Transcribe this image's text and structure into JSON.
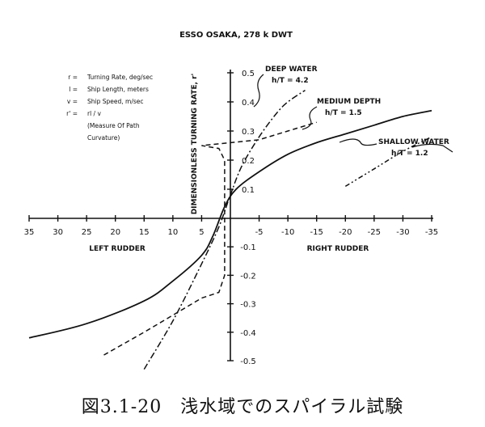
{
  "caption": "図3.1-20　浅水域でのスパイラル試験",
  "chart_data": {
    "type": "line",
    "title": "ESSO OSAKA, 278 k DWT",
    "ylabel": "DIMENSIONLESS TURNING RATE, r'",
    "xlabel_left": "LEFT RUDDER",
    "xlabel_right": "RIGHT RUDDER",
    "x_ticks": [
      35,
      30,
      25,
      20,
      15,
      10,
      5,
      -5,
      -10,
      -15,
      -20,
      -25,
      -30,
      -35
    ],
    "x_tick_labels": [
      "35",
      "30",
      "25",
      "20",
      "15",
      "10",
      "5",
      "-5",
      "-10",
      "-15",
      "-20",
      "-25",
      "-30",
      "-35"
    ],
    "y_ticks": [
      0.5,
      0.4,
      0.3,
      0.2,
      0.1,
      -0.1,
      -0.2,
      -0.3,
      -0.4,
      -0.5
    ],
    "y_tick_labels": [
      "0.5",
      "0.4",
      "0.3",
      "0.2",
      "0.1",
      "-0.1",
      "-0.2",
      "-0.3",
      "-0.4",
      "-0.5"
    ],
    "xlim": [
      35,
      -35
    ],
    "ylim": [
      -0.5,
      0.5
    ],
    "legend": [
      {
        "symbol": "r =",
        "text": "Turning Rate, deg/sec"
      },
      {
        "symbol": "l =",
        "text": "Ship Length, meters"
      },
      {
        "symbol": "v =",
        "text": "Ship Speed, m/sec"
      },
      {
        "symbol": "r' =",
        "text": "rl / v"
      },
      {
        "symbol": "",
        "text": "(Measure Of Path"
      },
      {
        "symbol": "",
        "text": "Curvature)"
      }
    ],
    "series": [
      {
        "name": "DEEP WATER",
        "sublabel": "h/T = 4.2",
        "style": "dashdot",
        "x": [
          15,
          10,
          5,
          2,
          0,
          -2,
          -5,
          -8,
          -10,
          -13
        ],
        "y": [
          -0.53,
          -0.36,
          -0.16,
          -0.03,
          0.08,
          0.18,
          0.28,
          0.36,
          0.4,
          0.44
        ]
      },
      {
        "name": "MEDIUM DEPTH",
        "sublabel": "h/T = 1.5",
        "style": "dashed",
        "x": [
          22,
          15,
          10,
          5,
          2,
          1,
          1,
          2,
          5,
          -5,
          -10,
          -15
        ],
        "y": [
          -0.48,
          -0.4,
          -0.34,
          -0.28,
          -0.26,
          -0.2,
          0.2,
          0.24,
          0.25,
          0.27,
          0.3,
          0.33
        ]
      },
      {
        "name": "SHALLOW WATER",
        "sublabel": "h/T = 1.2",
        "style": "solid",
        "x": [
          35,
          25,
          15,
          10,
          5,
          3,
          1,
          -1,
          -5,
          -10,
          -15,
          -20,
          -25,
          -30,
          -35
        ],
        "y": [
          -0.42,
          -0.37,
          -0.29,
          -0.22,
          -0.13,
          -0.06,
          0.04,
          0.1,
          0.16,
          0.22,
          0.26,
          0.29,
          0.32,
          0.35,
          0.37
        ]
      },
      {
        "name": "",
        "sublabel": "",
        "style": "dashdotdot",
        "x": [
          -20,
          -25,
          -30,
          -35
        ],
        "y": [
          0.11,
          0.17,
          0.23,
          0.28
        ]
      }
    ],
    "grid": false
  }
}
